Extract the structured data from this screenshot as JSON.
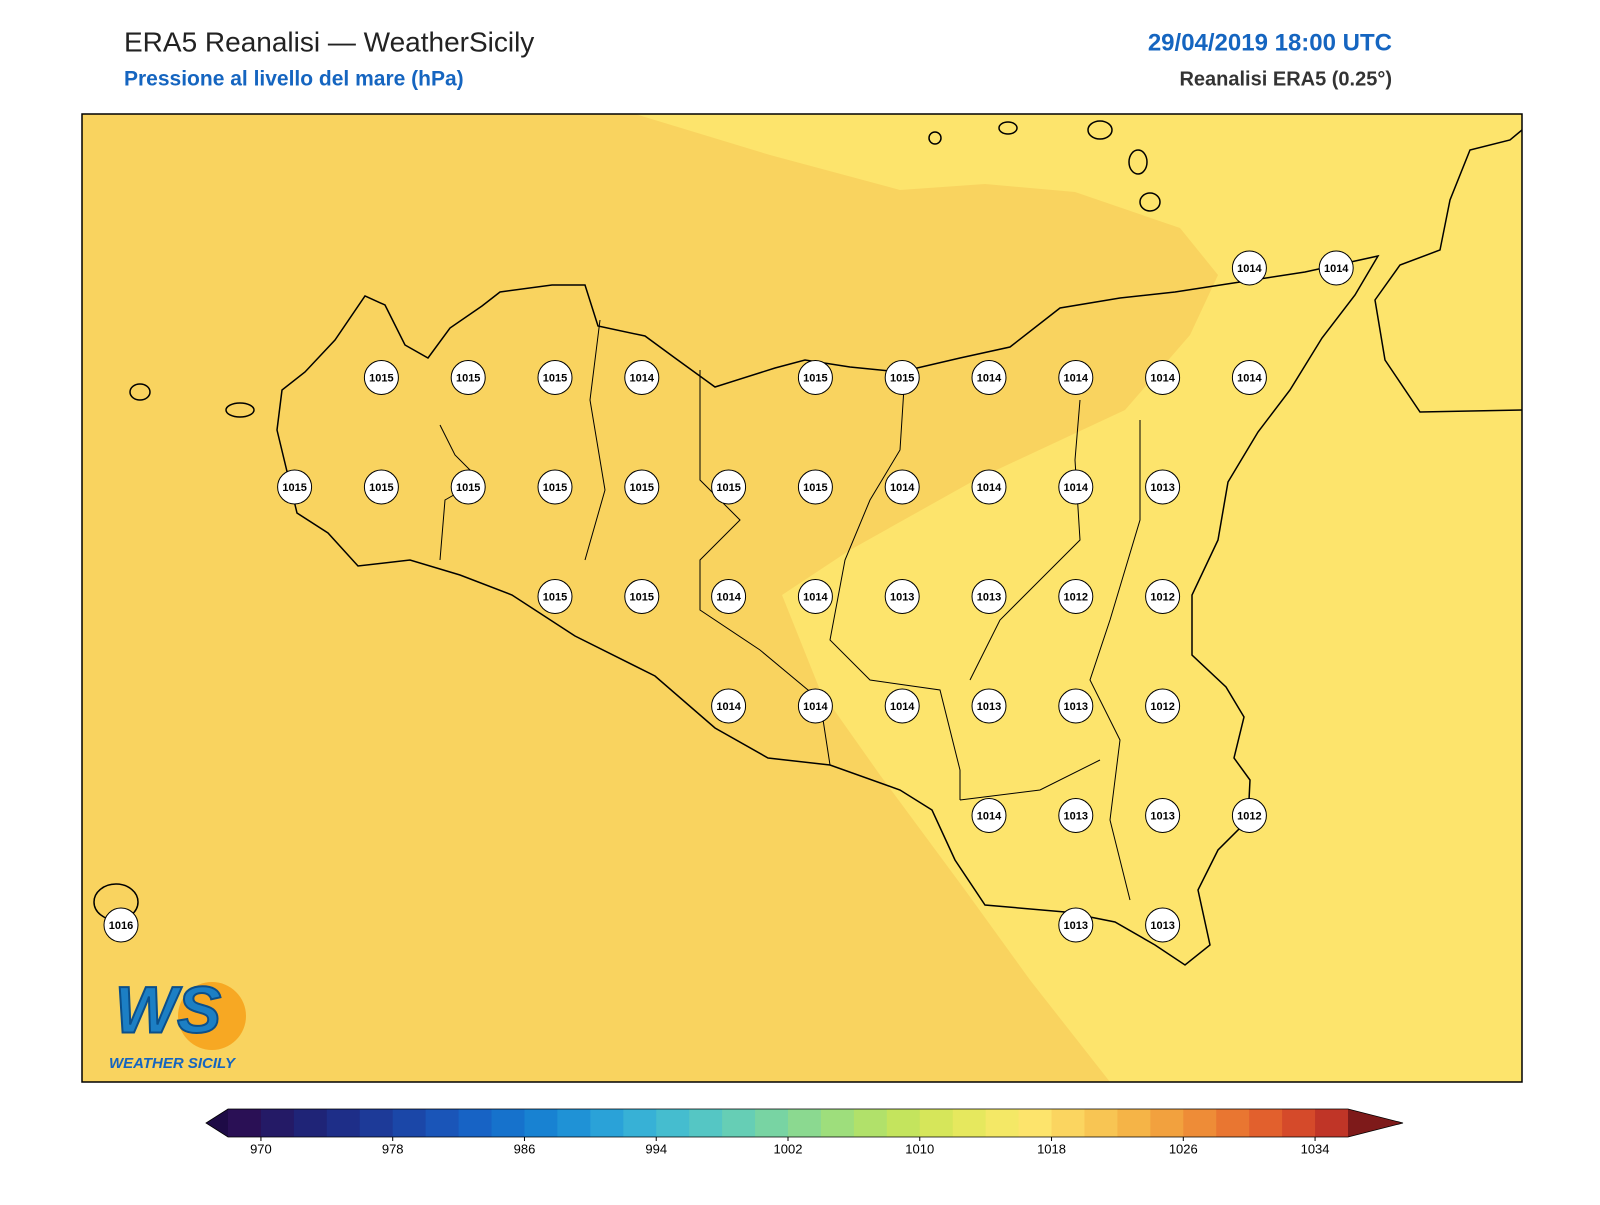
{
  "header": {
    "title": "ERA5 Reanalisi — WeatherSicily",
    "subtitle": "Pressione al livello del mare (hPa)",
    "datetime": "29/04/2019 18:00 UTC",
    "source": "Reanalisi ERA5 (0.25°)"
  },
  "stations": {
    "rows": [
      [
        null,
        null,
        null,
        null,
        null,
        null,
        null,
        null,
        null,
        null,
        null,
        null,
        null,
        1014,
        1014
      ],
      [
        null,
        null,
        null,
        1015,
        1015,
        1015,
        1014,
        null,
        1015,
        1015,
        1014,
        1014,
        1014,
        1014,
        null
      ],
      [
        null,
        null,
        1015,
        1015,
        1015,
        1015,
        1015,
        1015,
        1015,
        1014,
        1014,
        1014,
        1013,
        null,
        null
      ],
      [
        null,
        null,
        null,
        null,
        null,
        1015,
        1015,
        1014,
        1014,
        1013,
        1013,
        1012,
        1012,
        null,
        null
      ],
      [
        null,
        null,
        null,
        null,
        null,
        null,
        null,
        1014,
        1014,
        1014,
        1013,
        1013,
        1012,
        null,
        null
      ],
      [
        null,
        null,
        null,
        null,
        null,
        null,
        null,
        null,
        null,
        null,
        1014,
        1013,
        1013,
        1012,
        null
      ],
      [
        1016,
        null,
        null,
        null,
        null,
        null,
        null,
        null,
        null,
        null,
        null,
        1013,
        1013,
        null,
        null
      ]
    ]
  },
  "colorbar": {
    "lim": [
      968,
      1036
    ],
    "ticks": [
      970,
      978,
      986,
      994,
      1002,
      1010,
      1018,
      1026,
      1034
    ],
    "colors": [
      "#2a1055",
      "#241a66",
      "#1f2477",
      "#1e2e88",
      "#1d3a98",
      "#1b47a8",
      "#1a55b8",
      "#1763c5",
      "#1672cc",
      "#1882d2",
      "#1f92d6",
      "#2aa2d8",
      "#37b1d6",
      "#45bdcf",
      "#55c6c4",
      "#66ceb5",
      "#78d4a3",
      "#8bd990",
      "#9ede7c",
      "#b1e16a",
      "#c4e45d",
      "#d6e65a",
      "#e6e85e",
      "#f4e866",
      "#fde46c",
      "#fbd560",
      "#f8c553",
      "#f5b447",
      "#f2a13e",
      "#ee8c37",
      "#e97631",
      "#e2602d",
      "#d54a2a",
      "#c03527"
    ],
    "under": "#1e0b46",
    "over": "#7e1a1a"
  },
  "map": {
    "zone_west": "#f9d35f",
    "zone_east": "#fde46c"
  },
  "logo": {
    "mark": "WS",
    "text": "WEATHER SICILY"
  }
}
